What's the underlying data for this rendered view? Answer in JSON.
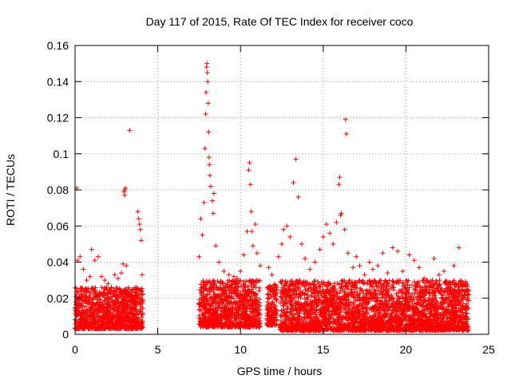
{
  "chart_data": {
    "type": "scatter",
    "title": "Day 117 of 2015, Rate Of TEC Index for receiver coco",
    "xlabel": "GPS time / hours",
    "ylabel": "ROTI / TECUs",
    "xlim": [
      0,
      25
    ],
    "ylim": [
      0,
      0.16
    ],
    "x_ticks": [
      "0",
      "5",
      "10",
      "15",
      "20",
      "25"
    ],
    "y_ticks": [
      "0",
      "0.02",
      "0.04",
      "0.06",
      "0.08",
      "0.1",
      "0.12",
      "0.14",
      "0.16"
    ],
    "grid": true,
    "legend": "none",
    "marker": "plus",
    "color": "#ff0000",
    "series": [
      {
        "name": "",
        "points": [
          [
            0.1,
            0.081
          ],
          [
            0.15,
            0.041
          ],
          [
            0.3,
            0.043
          ],
          [
            0.5,
            0.036
          ],
          [
            0.7,
            0.03
          ],
          [
            0.9,
            0.032
          ],
          [
            1.0,
            0.047
          ],
          [
            1.2,
            0.041
          ],
          [
            1.4,
            0.043
          ],
          [
            1.6,
            0.032
          ],
          [
            1.8,
            0.03
          ],
          [
            2.0,
            0.028
          ],
          [
            2.2,
            0.026
          ],
          [
            2.4,
            0.033
          ],
          [
            2.6,
            0.031
          ],
          [
            2.8,
            0.034
          ],
          [
            2.95,
            0.079
          ],
          [
            3.0,
            0.08
          ],
          [
            3.05,
            0.081
          ],
          [
            3.0,
            0.077
          ],
          [
            2.9,
            0.039
          ],
          [
            3.1,
            0.038
          ],
          [
            3.3,
            0.113
          ],
          [
            3.5,
            0.025
          ],
          [
            3.8,
            0.068
          ],
          [
            3.85,
            0.064
          ],
          [
            3.9,
            0.061
          ],
          [
            3.95,
            0.058
          ],
          [
            4.0,
            0.052
          ],
          [
            4.05,
            0.033
          ],
          [
            7.5,
            0.043
          ],
          [
            7.6,
            0.064
          ],
          [
            7.7,
            0.055
          ],
          [
            7.8,
            0.073
          ],
          [
            7.85,
            0.103
          ],
          [
            7.9,
            0.122
          ],
          [
            7.92,
            0.134
          ],
          [
            7.95,
            0.148
          ],
          [
            7.97,
            0.15
          ],
          [
            8.0,
            0.145
          ],
          [
            8.02,
            0.14
          ],
          [
            8.05,
            0.128
          ],
          [
            8.08,
            0.112
          ],
          [
            8.1,
            0.098
          ],
          [
            8.12,
            0.094
          ],
          [
            8.15,
            0.088
          ],
          [
            8.2,
            0.082
          ],
          [
            8.3,
            0.074
          ],
          [
            8.35,
            0.067
          ],
          [
            8.4,
            0.078
          ],
          [
            8.5,
            0.049
          ],
          [
            8.7,
            0.04
          ],
          [
            9.0,
            0.035
          ],
          [
            9.3,
            0.033
          ],
          [
            9.6,
            0.032
          ],
          [
            9.8,
            0.031
          ],
          [
            10.0,
            0.035
          ],
          [
            10.2,
            0.044
          ],
          [
            10.4,
            0.057
          ],
          [
            10.5,
            0.091
          ],
          [
            10.55,
            0.095
          ],
          [
            10.6,
            0.083
          ],
          [
            10.65,
            0.068
          ],
          [
            10.7,
            0.057
          ],
          [
            10.75,
            0.049
          ],
          [
            10.9,
            0.061
          ],
          [
            11.0,
            0.045
          ],
          [
            11.2,
            0.038
          ],
          [
            11.7,
            0.037
          ],
          [
            11.9,
            0.033
          ],
          [
            12.3,
            0.043
          ],
          [
            12.5,
            0.05
          ],
          [
            12.6,
            0.058
          ],
          [
            12.8,
            0.06
          ],
          [
            13.0,
            0.054
          ],
          [
            13.2,
            0.084
          ],
          [
            13.35,
            0.097
          ],
          [
            13.5,
            0.076
          ],
          [
            13.7,
            0.05
          ],
          [
            13.9,
            0.042
          ],
          [
            14.2,
            0.036
          ],
          [
            14.5,
            0.04
          ],
          [
            14.8,
            0.047
          ],
          [
            15.0,
            0.054
          ],
          [
            15.2,
            0.061
          ],
          [
            15.4,
            0.056
          ],
          [
            15.6,
            0.05
          ],
          [
            15.8,
            0.062
          ],
          [
            15.95,
            0.083
          ],
          [
            16.0,
            0.087
          ],
          [
            16.05,
            0.066
          ],
          [
            16.1,
            0.067
          ],
          [
            16.3,
            0.058
          ],
          [
            16.35,
            0.119
          ],
          [
            16.4,
            0.111
          ],
          [
            16.5,
            0.045
          ],
          [
            16.8,
            0.037
          ],
          [
            17.0,
            0.043
          ],
          [
            17.2,
            0.038
          ],
          [
            17.5,
            0.033
          ],
          [
            17.8,
            0.04
          ],
          [
            18.0,
            0.036
          ],
          [
            18.3,
            0.038
          ],
          [
            18.6,
            0.045
          ],
          [
            18.9,
            0.034
          ],
          [
            19.2,
            0.048
          ],
          [
            19.5,
            0.046
          ],
          [
            19.8,
            0.035
          ],
          [
            20.0,
            0.03
          ],
          [
            20.2,
            0.044
          ],
          [
            20.5,
            0.041
          ],
          [
            20.8,
            0.037
          ],
          [
            21.1,
            0.031
          ],
          [
            21.4,
            0.029
          ],
          [
            21.7,
            0.042
          ],
          [
            22.0,
            0.033
          ],
          [
            22.3,
            0.035
          ],
          [
            22.6,
            0.029
          ],
          [
            22.9,
            0.038
          ],
          [
            23.2,
            0.048
          ],
          [
            23.4,
            0.028
          ],
          [
            23.6,
            0.025
          ],
          [
            23.8,
            0.022
          ]
        ],
        "dense_bands": [
          {
            "x_range": [
              0.0,
              4.1
            ],
            "y_range": [
              0.003,
              0.026
            ]
          },
          {
            "x_range": [
              7.5,
              11.2
            ],
            "y_range": [
              0.004,
              0.03
            ]
          },
          {
            "x_range": [
              11.6,
              12.2
            ],
            "y_range": [
              0.005,
              0.028
            ]
          },
          {
            "x_range": [
              12.4,
              23.8
            ],
            "y_range": [
              0.002,
              0.03
            ]
          }
        ]
      }
    ]
  }
}
